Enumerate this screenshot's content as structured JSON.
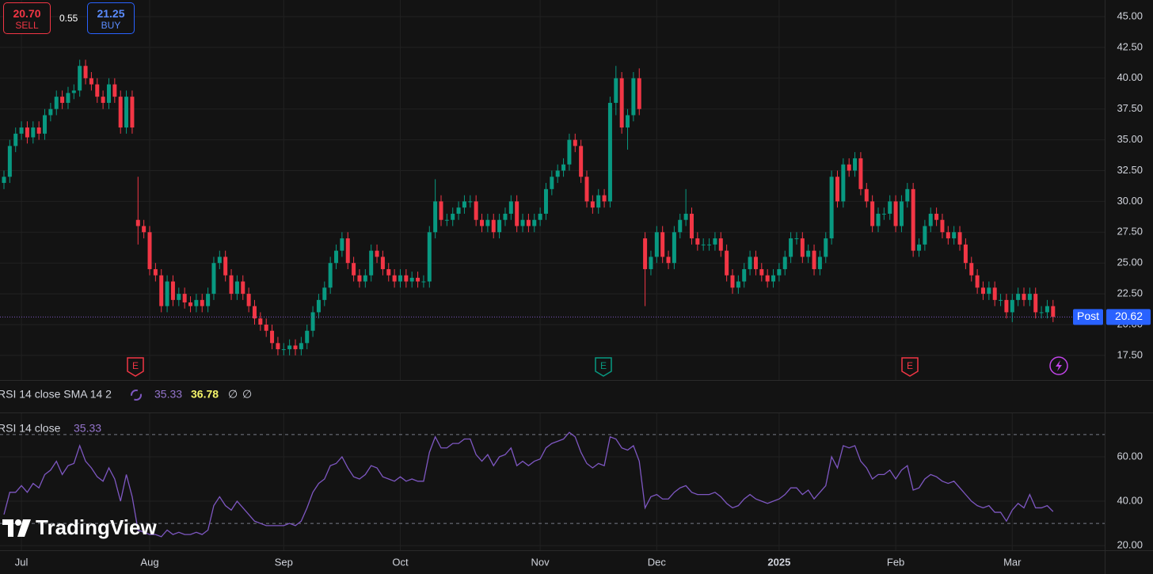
{
  "trade_panel": {
    "sell_price": "20.70",
    "sell_label": "SELL",
    "spread": "0.55",
    "buy_price": "21.25",
    "buy_label": "BUY"
  },
  "indicator_legend": {
    "title": "RSI 14 close SMA 14 2",
    "rsi": 35.33,
    "sma": 36.78,
    "extras": [
      "∅",
      "∅"
    ]
  },
  "events": [
    "E",
    "E",
    "E"
  ],
  "watermark": "TradingView",
  "chart_data": [
    {
      "type": "candlestick",
      "categories": [
        null,
        null,
        null,
        "Jul",
        null,
        null,
        null,
        null,
        null,
        null,
        null,
        null,
        null,
        null,
        null,
        null,
        null,
        null,
        null,
        null,
        null,
        null,
        null,
        null,
        null,
        "Aug",
        null,
        null,
        null,
        null,
        null,
        null,
        null,
        null,
        null,
        null,
        null,
        null,
        null,
        null,
        null,
        null,
        null,
        null,
        null,
        null,
        null,
        null,
        "Sep",
        null,
        null,
        null,
        null,
        null,
        null,
        null,
        null,
        null,
        null,
        null,
        null,
        null,
        null,
        null,
        null,
        null,
        null,
        null,
        "Oct",
        null,
        null,
        null,
        null,
        null,
        null,
        null,
        null,
        null,
        null,
        null,
        null,
        null,
        null,
        null,
        null,
        null,
        null,
        null,
        null,
        null,
        null,
        null,
        "Nov",
        null,
        null,
        null,
        null,
        null,
        null,
        null,
        null,
        null,
        null,
        null,
        null,
        null,
        null,
        null,
        null,
        null,
        null,
        null,
        "Dec",
        null,
        null,
        null,
        null,
        null,
        null,
        null,
        null,
        null,
        null,
        null,
        null,
        null,
        null,
        null,
        null,
        null,
        null,
        null,
        null,
        "2025",
        null,
        null,
        null,
        null,
        null,
        null,
        null,
        null,
        null,
        null,
        null,
        null,
        null,
        null,
        null,
        null,
        null,
        null,
        null,
        "Feb",
        null,
        null,
        null,
        null,
        null,
        null,
        null,
        null,
        null,
        null,
        null,
        null,
        null,
        null,
        null,
        null,
        null,
        null,
        null,
        "Mar",
        null,
        null,
        null,
        null,
        null,
        null,
        null
      ],
      "open": [
        31.5,
        32,
        34.5,
        35.5,
        36,
        35.2,
        36,
        35.5,
        37,
        37.5,
        38.5,
        38,
        38.8,
        39,
        41,
        40,
        39.5,
        38.5,
        38,
        39.5,
        38.5,
        36,
        38.5,
        28.5,
        28,
        27.5,
        24.5,
        24,
        21.5,
        23.5,
        22,
        22.5,
        21.8,
        21.5,
        22,
        21.5,
        22.5,
        25,
        25.5,
        24,
        22.5,
        23.5,
        22.5,
        21.5,
        20.5,
        20,
        19.5,
        18.5,
        18,
        18,
        18.3,
        18,
        18.5,
        19.5,
        21,
        22,
        23,
        25,
        26,
        27,
        25,
        24,
        23.5,
        24,
        26,
        25.5,
        24.5,
        24,
        23.5,
        24,
        23.5,
        23.8,
        23.5,
        23.5,
        27.5,
        30,
        28.5,
        28.5,
        29,
        29.5,
        30,
        30,
        28.5,
        28,
        28.5,
        27.5,
        28.5,
        29,
        30,
        28,
        28.5,
        28,
        28.5,
        29,
        31,
        32,
        32.5,
        33,
        35,
        34.5,
        32,
        30,
        29.5,
        30.5,
        30,
        38,
        40,
        36,
        37,
        40,
        27,
        24.5,
        25.5,
        27.5,
        25.5,
        25,
        27.5,
        28.5,
        29,
        27,
        26.5,
        26.5,
        26.5,
        27,
        26,
        24,
        23,
        23.5,
        24.5,
        25.5,
        24.5,
        24,
        23.5,
        24,
        24.5,
        25.5,
        27,
        27,
        25.5,
        26,
        24.5,
        25.5,
        27,
        32,
        30,
        33,
        32.5,
        33.5,
        31,
        30,
        28,
        29,
        29,
        30,
        28,
        30,
        31,
        26,
        26.5,
        28,
        29,
        28.5,
        27.5,
        27,
        27.5,
        26.5,
        25,
        24,
        23,
        22.5,
        23,
        22,
        22,
        21,
        22,
        22.5,
        22,
        22.5,
        21,
        21,
        21.5
      ],
      "high": [
        32.5,
        35,
        36,
        36.5,
        36.5,
        36.5,
        36.5,
        37.5,
        38,
        39,
        39,
        39.3,
        39.5,
        41.5,
        41.5,
        40.5,
        40,
        39,
        40,
        40,
        39,
        39,
        39,
        32,
        28.5,
        28,
        25,
        24.5,
        24,
        24,
        23,
        23,
        22.3,
        22.5,
        22.5,
        23,
        25.5,
        26,
        26,
        24.5,
        24,
        24,
        23,
        22,
        21,
        20.5,
        20,
        19,
        18.5,
        18.8,
        18.8,
        19,
        20,
        21.5,
        22.5,
        23.5,
        25.5,
        26.5,
        27.5,
        27.5,
        25.5,
        24.5,
        24.5,
        26.5,
        26.5,
        26,
        25,
        24.5,
        24.5,
        24.5,
        24.3,
        24.3,
        24,
        28,
        31.8,
        30.5,
        29,
        29.5,
        30,
        30.5,
        30.5,
        30.5,
        29,
        29,
        29,
        29,
        29.5,
        30.5,
        30.5,
        29,
        29,
        29,
        29.5,
        31.5,
        32.5,
        33,
        33.5,
        35.5,
        35.5,
        35,
        32.5,
        30.5,
        31,
        31,
        38.5,
        41,
        40.5,
        37.5,
        40.5,
        40.8,
        27.5,
        26,
        28,
        28,
        26,
        28,
        29,
        31,
        29.5,
        27.5,
        27,
        27,
        27.5,
        27.5,
        26.5,
        24.5,
        24,
        25,
        26,
        26,
        25,
        24.5,
        24.5,
        25,
        26,
        27.5,
        27.5,
        27.5,
        26.5,
        26.5,
        26,
        27.5,
        32.5,
        32.5,
        33.5,
        33.5,
        34,
        34,
        31.5,
        30.5,
        29.5,
        29.5,
        30.5,
        30.5,
        30.5,
        31.5,
        31.5,
        27,
        28.5,
        29.5,
        29.5,
        29,
        28,
        28,
        28,
        27,
        25.5,
        24.5,
        23.5,
        23.5,
        23.5,
        22.5,
        22.5,
        22.5,
        23,
        23,
        23,
        23,
        21.5,
        22,
        22
      ],
      "low": [
        31,
        31.5,
        34,
        35,
        34.7,
        34.7,
        35,
        35,
        36.5,
        37,
        37.5,
        37.5,
        38.3,
        38.5,
        39.5,
        39,
        38,
        37.5,
        37.5,
        38,
        35.5,
        35.5,
        35.5,
        26.5,
        27,
        24,
        23.5,
        21,
        21,
        21.5,
        21.5,
        21.3,
        21,
        21,
        21,
        21,
        22,
        24.5,
        23.5,
        22,
        22,
        22,
        21,
        20,
        19.5,
        19,
        18,
        17.5,
        17.5,
        17.5,
        17.5,
        17.5,
        18,
        19,
        20.5,
        21.5,
        22.5,
        24.5,
        25.5,
        24.5,
        23.5,
        23,
        23,
        23.5,
        25,
        24,
        23.5,
        23,
        23,
        23,
        23,
        23,
        23,
        23,
        27,
        28,
        28,
        28,
        28.5,
        29,
        29.5,
        28,
        27.5,
        27.5,
        27,
        27,
        28,
        28.5,
        27.5,
        27.5,
        27.5,
        27.5,
        28,
        28.5,
        30.5,
        31.5,
        32,
        32.5,
        34,
        31.5,
        29.5,
        29,
        29,
        29.5,
        29.5,
        37,
        35.5,
        34.2,
        36.5,
        37,
        21.5,
        24,
        25,
        25,
        24.5,
        24.5,
        27,
        28,
        26.5,
        26,
        26,
        26,
        26,
        25.5,
        23.5,
        22.5,
        22.5,
        23,
        24,
        24,
        23.5,
        23,
        23,
        23.5,
        24,
        25,
        26.5,
        25,
        25,
        24,
        24,
        25,
        26.5,
        29.5,
        29.5,
        32,
        32,
        30.5,
        29.5,
        27.5,
        27.5,
        28.5,
        28.5,
        27.5,
        27.5,
        29.5,
        25.5,
        25.5,
        26,
        27.5,
        28,
        27,
        26.5,
        26.5,
        26,
        24.5,
        23.5,
        22.5,
        22,
        22,
        21.5,
        21.5,
        20.5,
        20.2,
        21.5,
        21.5,
        21.5,
        20.5,
        20.5,
        20.5,
        20.2
      ],
      "close": [
        32,
        34.5,
        35.5,
        36,
        35.2,
        36,
        35.5,
        37,
        37.5,
        38.5,
        38,
        38.8,
        39,
        41,
        40,
        39.5,
        38.5,
        38,
        39.5,
        38.5,
        36,
        38.5,
        36,
        28,
        27.5,
        24.5,
        24,
        21.5,
        23.5,
        22,
        22.5,
        21.8,
        21.5,
        22,
        21.5,
        22.5,
        25,
        25.5,
        24,
        22.5,
        23.5,
        22.5,
        21.5,
        20.5,
        20,
        19.5,
        18.5,
        18,
        18,
        18.3,
        18,
        18.5,
        19.5,
        21,
        22,
        23,
        25,
        26,
        27,
        25,
        24,
        23.5,
        24,
        26,
        25.5,
        24.5,
        24,
        23.5,
        24,
        23.5,
        23.8,
        23.5,
        23.5,
        27.5,
        30,
        28.5,
        28.5,
        29,
        29.5,
        30,
        30,
        28.5,
        28,
        28.5,
        27.5,
        28.5,
        29,
        30,
        28,
        28.5,
        28,
        28.5,
        29,
        31,
        32,
        32.5,
        33,
        35,
        34.5,
        32,
        30,
        29.5,
        30.5,
        30,
        38,
        40,
        36,
        37,
        40,
        37.5,
        24.5,
        25.5,
        27.5,
        25.5,
        25,
        27.5,
        28.5,
        29,
        27,
        26.5,
        26.5,
        26.5,
        27,
        26,
        24,
        23,
        23.5,
        24.5,
        25.5,
        24.5,
        24,
        23.5,
        24,
        24.5,
        25.5,
        27,
        27,
        25.5,
        26,
        24.5,
        25.5,
        27,
        32,
        30,
        33,
        32.5,
        33.5,
        31,
        30,
        28,
        29,
        29,
        30,
        28,
        30,
        31,
        26,
        26.5,
        28,
        29,
        28.5,
        27.5,
        27,
        27.5,
        26.5,
        25,
        24,
        23,
        22.5,
        23,
        22,
        22,
        21,
        22,
        22.5,
        22,
        22.5,
        21,
        21,
        21.5,
        20.62
      ],
      "up_color": "#089981",
      "down_color": "#f23645",
      "ylim": [
        15.5,
        46.35
      ],
      "yticks": [
        {
          "value": 17.5,
          "label": "17.50"
        },
        {
          "value": 20,
          "label": "20.00"
        },
        {
          "value": 22.5,
          "label": "22.50"
        },
        {
          "value": 25,
          "label": "25.00"
        },
        {
          "value": 27.5,
          "label": "27.50"
        },
        {
          "value": 30,
          "label": "30.00"
        },
        {
          "value": 32.5,
          "label": "32.50"
        },
        {
          "value": 35,
          "label": "35.00"
        },
        {
          "value": 37.5,
          "label": "37.50"
        },
        {
          "value": 40,
          "label": "40.00"
        },
        {
          "value": 42.5,
          "label": "42.50"
        },
        {
          "value": 45,
          "label": "45.00"
        }
      ],
      "grid": true,
      "last_price": {
        "label": "Post",
        "value": 20.62,
        "color": "#2962ff"
      }
    },
    {
      "type": "line",
      "title": "RSI 14 close",
      "value_now": 35.33,
      "color": "#7e57c2",
      "values": [
        34,
        44,
        44,
        47,
        44,
        48,
        46,
        52,
        54,
        58,
        52,
        56,
        57,
        65,
        58,
        55,
        51,
        49,
        55,
        50,
        40,
        52,
        42,
        27,
        26,
        25,
        25,
        24,
        27,
        25,
        26,
        25,
        25,
        26,
        25,
        27,
        38,
        42,
        38,
        36,
        40,
        37,
        34,
        31,
        30,
        29,
        29,
        29,
        29,
        30,
        29,
        31,
        37,
        44,
        48,
        50,
        56,
        57,
        60,
        55,
        51,
        50,
        52,
        56,
        55,
        51,
        50,
        49,
        51,
        49,
        50,
        49,
        49,
        62,
        69,
        64,
        64,
        66,
        66,
        68,
        68,
        61,
        58,
        61,
        56,
        60,
        61,
        64,
        56,
        58,
        56,
        58,
        59,
        64,
        66,
        67,
        68,
        71,
        69,
        62,
        57,
        55,
        57,
        56,
        69,
        68,
        64,
        63,
        65,
        58,
        37,
        42,
        43,
        41,
        41,
        44,
        46,
        47,
        44,
        43,
        43,
        43,
        44,
        42,
        39,
        37,
        38,
        41,
        43,
        41,
        40,
        39,
        40,
        41,
        43,
        46,
        46,
        43,
        45,
        41,
        44,
        47,
        60,
        55,
        65,
        64,
        65,
        58,
        55,
        50,
        52,
        52,
        54,
        50,
        54,
        56,
        45,
        46,
        50,
        52,
        51,
        49,
        48,
        49,
        46,
        43,
        40,
        38,
        37,
        38,
        35,
        35,
        31,
        36,
        39,
        37,
        43,
        37,
        37,
        38,
        35.33
      ],
      "ylim": [
        17.9,
        79.6
      ],
      "yticks": [
        {
          "value": 20,
          "label": "20.00"
        },
        {
          "value": 40,
          "label": "40.00"
        },
        {
          "value": 60,
          "label": "60.00"
        }
      ],
      "levels": [
        70,
        30
      ]
    }
  ]
}
